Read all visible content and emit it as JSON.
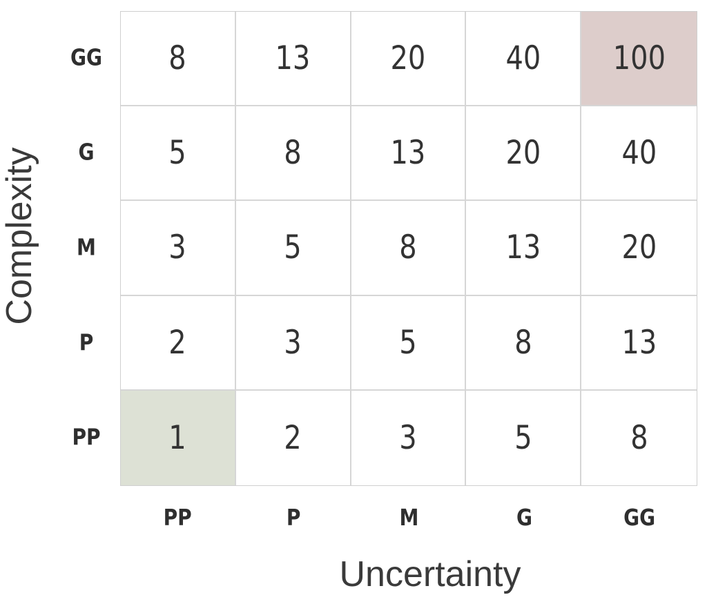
{
  "chart_data": {
    "type": "heatmap",
    "ylabel": "Complexity",
    "xlabel": "Uncertainty",
    "row_labels": [
      "GG",
      "G",
      "M",
      "P",
      "PP"
    ],
    "col_labels": [
      "PP",
      "P",
      "M",
      "G",
      "GG"
    ],
    "values": [
      [
        8,
        13,
        20,
        40,
        100
      ],
      [
        5,
        8,
        13,
        20,
        40
      ],
      [
        3,
        5,
        8,
        13,
        20
      ],
      [
        2,
        3,
        5,
        8,
        13
      ],
      [
        1,
        2,
        3,
        5,
        8
      ]
    ],
    "highlights": [
      {
        "row": 0,
        "col": 4,
        "color": "#ddcdcb"
      },
      {
        "row": 4,
        "col": 0,
        "color": "#dde1d5"
      }
    ]
  }
}
